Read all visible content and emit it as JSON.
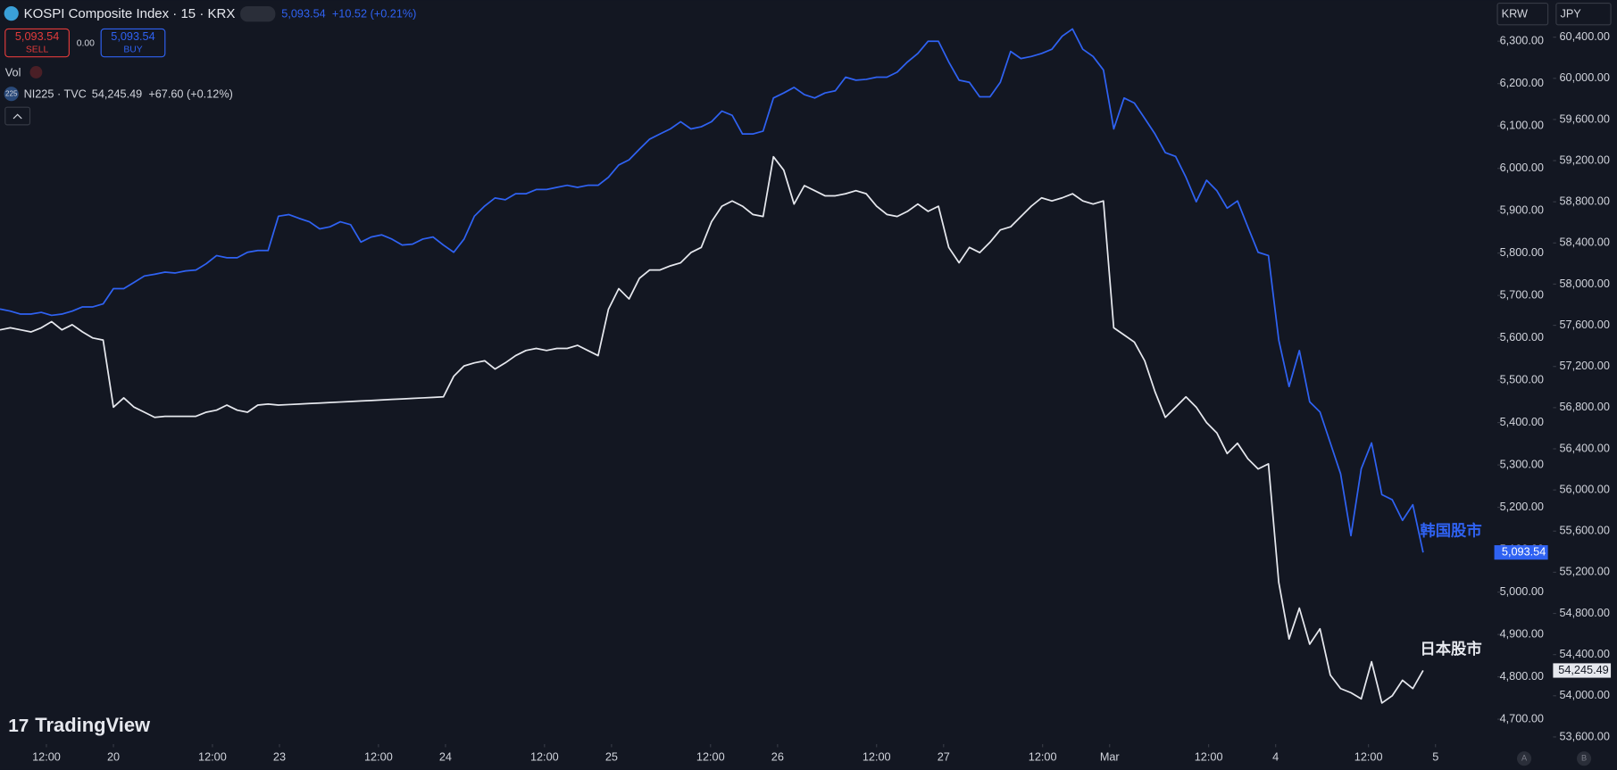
{
  "header": {
    "symbol": "KOSPI Composite Index · 15 · KRX",
    "price": "5,093.54",
    "change": "+10.52 (+0.21%)",
    "sell_price": "5,093.54",
    "sell": "SELL",
    "spread": "0.00",
    "buy_price": "5,093.54",
    "buy": "BUY",
    "vol": "Vol",
    "compare_icon": "225",
    "compare_symbol": "NI225 · TVC",
    "compare_price": "54,245.49",
    "compare_change": "+67.60 (+0.12%)",
    "currency_left": "KRW",
    "currency_right": "JPY",
    "logo": "TradingView",
    "scale_a": "A",
    "scale_b": "B"
  },
  "chart_data": {
    "type": "line",
    "x": [
      0,
      1,
      2,
      3,
      4,
      5,
      6,
      7,
      8,
      9,
      10,
      11,
      12,
      13,
      14,
      15,
      16,
      17,
      18,
      19,
      20,
      21,
      22,
      23,
      24,
      25,
      26,
      27,
      28,
      29,
      30,
      31,
      32,
      33,
      34,
      35,
      36,
      37,
      38,
      39,
      40,
      41,
      42,
      43,
      44,
      45,
      46,
      47,
      48,
      49,
      50,
      51,
      52,
      53,
      54,
      55,
      56,
      57,
      58,
      59,
      60,
      61,
      62,
      63,
      64,
      65,
      66,
      67,
      68,
      69,
      70,
      71,
      72,
      73,
      74,
      75,
      76,
      77,
      78,
      79,
      80,
      81,
      82,
      83,
      84,
      85,
      86,
      87,
      88,
      89,
      90,
      91,
      92,
      93,
      94,
      95,
      96,
      97,
      98,
      99,
      100,
      101,
      102,
      103,
      104,
      105,
      106,
      107,
      108,
      109,
      110,
      111,
      112,
      113,
      114,
      115,
      116,
      117,
      118,
      119,
      120,
      121,
      122,
      123,
      124,
      125,
      126,
      127,
      128,
      129,
      130,
      131,
      132,
      133,
      134,
      135,
      136,
      137,
      138
    ],
    "xlim": [
      0,
      145
    ],
    "xticks": [
      {
        "value": 4.5,
        "label": "12:00"
      },
      {
        "value": 11,
        "label": "20"
      },
      {
        "value": 20.6,
        "label": "12:00"
      },
      {
        "value": 27.1,
        "label": "23"
      },
      {
        "value": 36.7,
        "label": "12:00"
      },
      {
        "value": 43.2,
        "label": "24"
      },
      {
        "value": 52.8,
        "label": "12:00"
      },
      {
        "value": 59.3,
        "label": "25"
      },
      {
        "value": 68.9,
        "label": "12:00"
      },
      {
        "value": 75.4,
        "label": "26"
      },
      {
        "value": 85,
        "label": "12:00"
      },
      {
        "value": 91.5,
        "label": "27"
      },
      {
        "value": 101.1,
        "label": "12:00"
      },
      {
        "value": 107.6,
        "label": "Mar"
      },
      {
        "value": 117.2,
        "label": "12:00"
      },
      {
        "value": 123.7,
        "label": "4"
      },
      {
        "value": 132.7,
        "label": "12:00"
      },
      {
        "value": 139.2,
        "label": "5"
      }
    ],
    "ylim": [
      4646,
      6397
    ],
    "yticks": [
      {
        "value": 4700,
        "label": "4,700.00"
      },
      {
        "value": 4800,
        "label": "4,800.00"
      },
      {
        "value": 4900,
        "label": "4,900.00"
      },
      {
        "value": 5000,
        "label": "5,000.00"
      },
      {
        "value": 5100,
        "label": "5,100.00"
      },
      {
        "value": 5200,
        "label": "5,200.00"
      },
      {
        "value": 5300,
        "label": "5,300.00"
      },
      {
        "value": 5400,
        "label": "5,400.00"
      },
      {
        "value": 5500,
        "label": "5,500.00"
      },
      {
        "value": 5600,
        "label": "5,600.00"
      },
      {
        "value": 5700,
        "label": "5,700.00"
      },
      {
        "value": 5800,
        "label": "5,800.00"
      },
      {
        "value": 5900,
        "label": "5,900.00"
      },
      {
        "value": 6000,
        "label": "6,000.00"
      },
      {
        "value": 6100,
        "label": "6,100.00"
      },
      {
        "value": 6200,
        "label": "6,200.00"
      },
      {
        "value": 6300,
        "label": "6,300.00"
      }
    ],
    "y2lim": [
      53550,
      60760
    ],
    "y2ticks": [
      {
        "value": 53600,
        "label": "53,600.00"
      },
      {
        "value": 54000,
        "label": "54,000.00"
      },
      {
        "value": 54400,
        "label": "54,400.00"
      },
      {
        "value": 54800,
        "label": "54,800.00"
      },
      {
        "value": 55200,
        "label": "55,200.00"
      },
      {
        "value": 55600,
        "label": "55,600.00"
      },
      {
        "value": 56000,
        "label": "56,000.00"
      },
      {
        "value": 56400,
        "label": "56,400.00"
      },
      {
        "value": 56800,
        "label": "56,800.00"
      },
      {
        "value": 57200,
        "label": "57,200.00"
      },
      {
        "value": 57600,
        "label": "57,600.00"
      },
      {
        "value": 58000,
        "label": "58,000.00"
      },
      {
        "value": 58400,
        "label": "58,400.00"
      },
      {
        "value": 58800,
        "label": "58,800.00"
      },
      {
        "value": 59200,
        "label": "59,200.00"
      },
      {
        "value": 59600,
        "label": "59,600.00"
      },
      {
        "value": 60000,
        "label": "60,000.00"
      },
      {
        "value": 60400,
        "label": "60,400.00"
      }
    ],
    "grid": false,
    "series": [
      {
        "name": "韩国股市",
        "color": "#2f62f2",
        "last_label": "5,093.54",
        "values": [
          5668,
          5663,
          5656,
          5656,
          5660,
          5653,
          5656,
          5663,
          5673,
          5673,
          5680,
          5716,
          5716,
          5731,
          5746,
          5750,
          5755,
          5753,
          5758,
          5760,
          5775,
          5794,
          5789,
          5789,
          5802,
          5806,
          5806,
          5887,
          5891,
          5882,
          5874,
          5857,
          5862,
          5874,
          5867,
          5826,
          5838,
          5843,
          5833,
          5819,
          5821,
          5833,
          5838,
          5819,
          5802,
          5833,
          5887,
          5911,
          5930,
          5926,
          5940,
          5940,
          5950,
          5950,
          5955,
          5960,
          5955,
          5960,
          5960,
          5979,
          6008,
          6020,
          6045,
          6069,
          6081,
          6093,
          6110,
          6093,
          6098,
          6110,
          6135,
          6125,
          6081,
          6081,
          6088,
          6166,
          6178,
          6191,
          6174,
          6166,
          6178,
          6183,
          6215,
          6208,
          6210,
          6215,
          6215,
          6227,
          6251,
          6271,
          6300,
          6300,
          6251,
          6208,
          6203,
          6169,
          6169,
          6203,
          6276,
          6259,
          6264,
          6271,
          6281,
          6312,
          6329,
          6281,
          6264,
          6232,
          6093,
          6166,
          6154,
          6118,
          6081,
          6037,
          6028,
          5979,
          5921,
          5972,
          5947,
          5906,
          5923,
          5862,
          5802,
          5794,
          5595,
          5485,
          5570,
          5449,
          5425,
          5352,
          5279,
          5133,
          5291,
          5352,
          5230,
          5218,
          5169,
          5206,
          5093.54
        ]
      },
      {
        "name": "日本股市",
        "color": "#e6e8ee",
        "axis": "y2",
        "last_label": "54,245.49",
        "values": [
          57556,
          57576,
          57556,
          57536,
          57576,
          57636,
          57556,
          57606,
          57536,
          57476,
          57456,
          56805,
          56895,
          56805,
          56755,
          56705,
          56715,
          56715,
          56715,
          56715,
          56755,
          56775,
          56825,
          56775,
          56755,
          56825,
          56835,
          56825,
          56830,
          56835,
          56840,
          56845,
          56850,
          56855,
          56860,
          56865,
          56870,
          56875,
          56880,
          56885,
          56890,
          56895,
          56900,
          56905,
          57105,
          57205,
          57235,
          57255,
          57175,
          57235,
          57305,
          57355,
          57375,
          57355,
          57375,
          57375,
          57405,
          57355,
          57305,
          57756,
          57956,
          57856,
          58056,
          58137,
          58137,
          58177,
          58207,
          58307,
          58357,
          58607,
          58757,
          58808,
          58757,
          58677,
          58657,
          59238,
          59108,
          58778,
          58958,
          58908,
          58858,
          58858,
          58878,
          58908,
          58878,
          58757,
          58677,
          58657,
          58707,
          58778,
          58707,
          58757,
          58357,
          58207,
          58357,
          58307,
          58407,
          58527,
          58557,
          58657,
          58757,
          58838,
          58808,
          58838,
          58878,
          58808,
          58778,
          58808,
          57576,
          57506,
          57436,
          57255,
          56955,
          56705,
          56805,
          56905,
          56805,
          56654,
          56554,
          56354,
          56454,
          56304,
          56204,
          56254,
          55102,
          54551,
          54852,
          54501,
          54651,
          54201,
          54070,
          54030,
          53970,
          54331,
          53930,
          54000,
          54151,
          54070,
          54245.49
        ]
      }
    ]
  }
}
